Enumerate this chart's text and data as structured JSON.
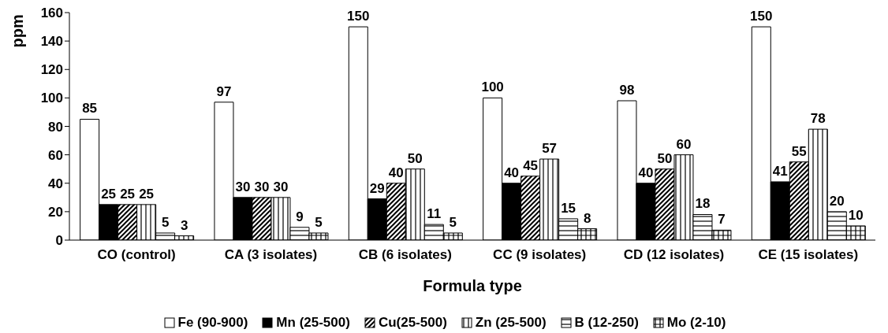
{
  "chart_data": {
    "type": "bar",
    "xlabel": "Formula type",
    "ylabel": "ppm",
    "categories": [
      "CO (control)",
      "CA (3 isolates)",
      "CB (6 isolates)",
      "CC (9 isolates)",
      "CD (12 isolates)",
      "CE (15 isolates)"
    ],
    "series": [
      {
        "name": "Fe (90-900)",
        "color": "#ffffff",
        "values": [
          85,
          97,
          150,
          100,
          98,
          150
        ]
      },
      {
        "name": "Mn (25-500)",
        "color": "#000000",
        "values": [
          25,
          30,
          29,
          40,
          40,
          41
        ]
      },
      {
        "name": "Cu(25-500)",
        "color": "#000000",
        "values": [
          25,
          30,
          40,
          45,
          50,
          55
        ]
      },
      {
        "name": "Zn (25-500)",
        "color": "#000000",
        "values": [
          25,
          30,
          50,
          57,
          60,
          78
        ]
      },
      {
        "name": "B (12-250)",
        "color": "#000000",
        "values": [
          5,
          9,
          11,
          15,
          18,
          20
        ]
      },
      {
        "name": "Mo (2-10)",
        "color": "#000000",
        "values": [
          3,
          5,
          5,
          8,
          7,
          10
        ]
      }
    ],
    "ylim": [
      0,
      160
    ],
    "yticks": [
      0,
      20,
      40,
      60,
      80,
      100,
      120,
      140,
      160
    ],
    "data_labels": true,
    "grid": false,
    "legend": "bottom"
  }
}
